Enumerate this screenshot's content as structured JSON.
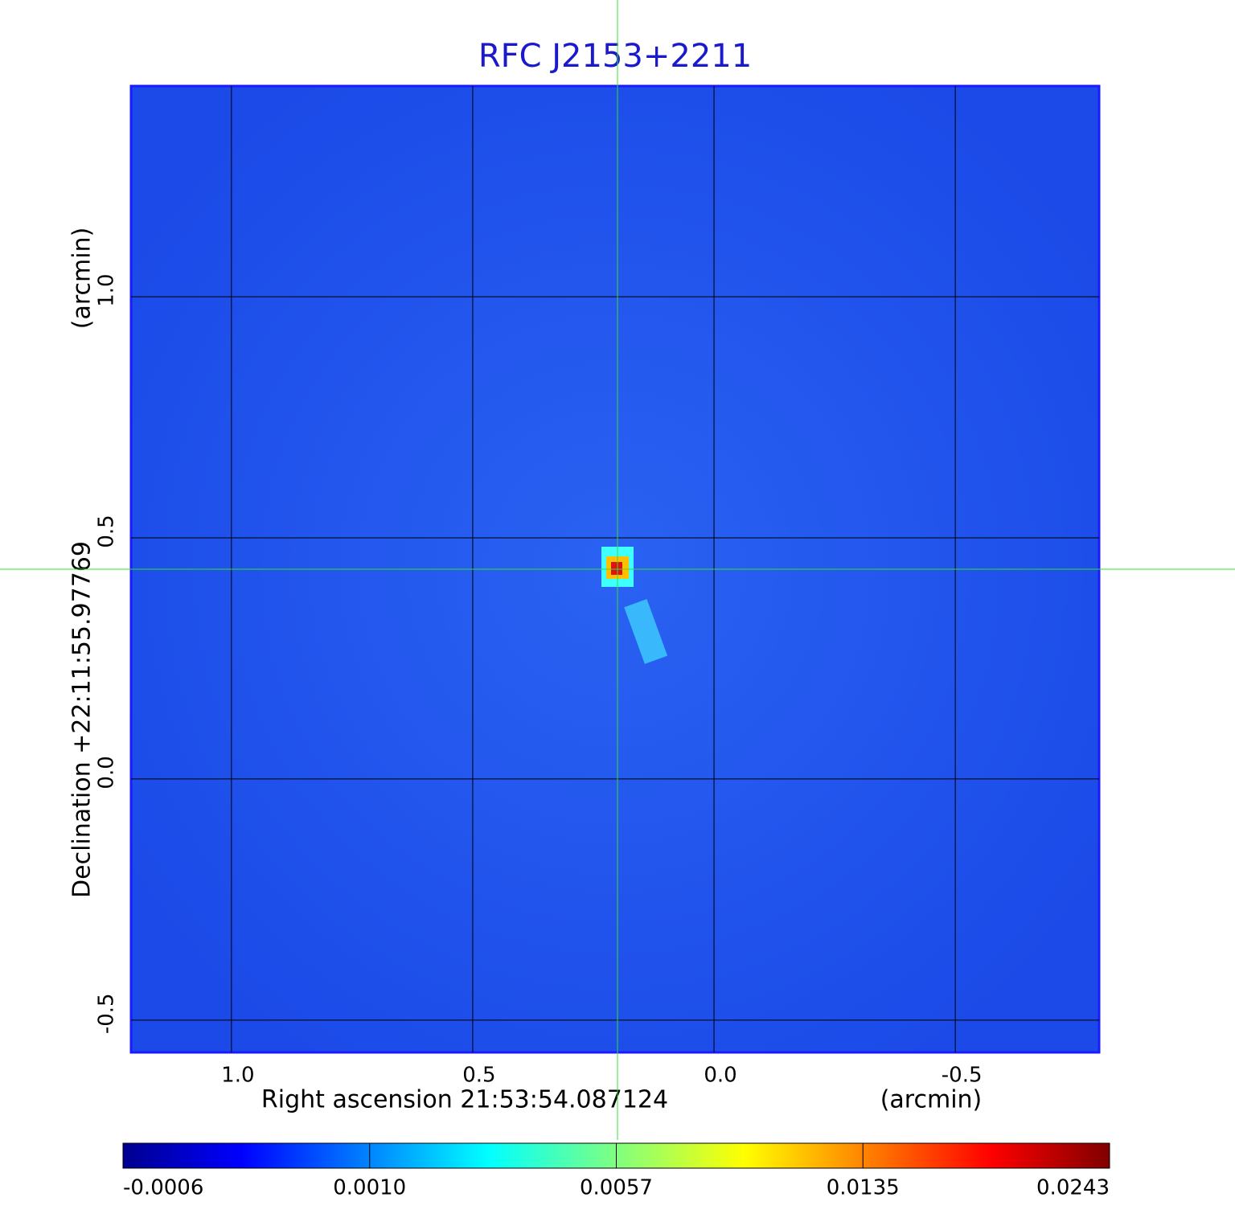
{
  "chart_data": {
    "type": "image",
    "title": "RFC J2153+2211",
    "x_label": "Right ascension  21:53:54.087124",
    "x_unit": "(arcmin)",
    "y_label": "Declination  +22:11:55.97769",
    "y_unit": "(arcmin)",
    "xlim": [
      1.208,
      -0.798
    ],
    "ylim": [
      -0.567,
      1.437
    ],
    "xticks": [
      {
        "value": 1,
        "label": "1.0"
      },
      0.5,
      {
        "value": 0,
        "label": "0.0"
      },
      -0.5
    ],
    "yticks": [
      {
        "value": 1,
        "label": "1.0"
      },
      0.5,
      {
        "value": 0,
        "label": "0.0"
      },
      -0.5
    ],
    "grid": true,
    "marker": {
      "x": 0.2,
      "y": 0.435
    },
    "colorbar_ticks": [
      -0.0006,
      {
        "value": 0.001,
        "label": "0.0010"
      },
      0.0057,
      0.0135,
      0.0243
    ]
  }
}
